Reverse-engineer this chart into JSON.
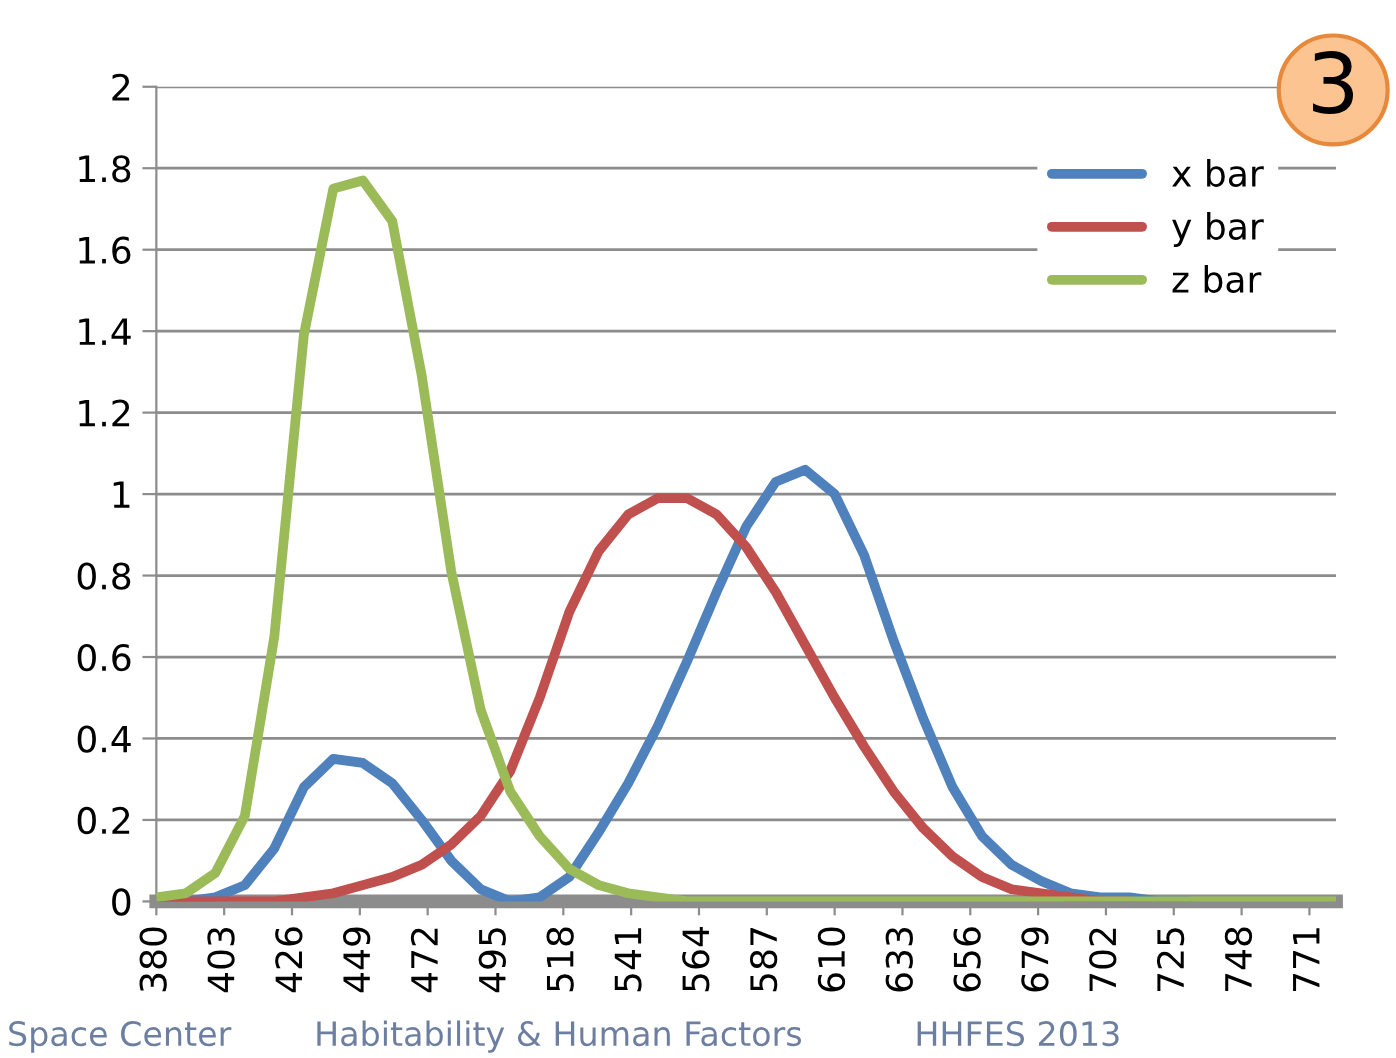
{
  "chart_data": {
    "type": "line",
    "x": [
      380,
      390,
      400,
      410,
      420,
      430,
      440,
      450,
      460,
      470,
      480,
      490,
      500,
      510,
      520,
      530,
      540,
      550,
      560,
      570,
      580,
      590,
      600,
      610,
      620,
      630,
      640,
      650,
      660,
      670,
      680,
      690,
      700,
      710,
      720,
      730,
      740,
      750,
      760,
      770,
      780
    ],
    "series": [
      {
        "name": "x bar",
        "color": "#4f81bd",
        "values": [
          0.0,
          0.0,
          0.01,
          0.04,
          0.13,
          0.28,
          0.35,
          0.34,
          0.29,
          0.2,
          0.1,
          0.03,
          0.0,
          0.01,
          0.06,
          0.17,
          0.29,
          0.43,
          0.59,
          0.76,
          0.92,
          1.03,
          1.06,
          1.0,
          0.85,
          0.64,
          0.45,
          0.28,
          0.16,
          0.09,
          0.05,
          0.02,
          0.01,
          0.01,
          0.0,
          0.0,
          null,
          null,
          null,
          null,
          null
        ]
      },
      {
        "name": "y bar",
        "color": "#c0504d",
        "values": [
          0.0,
          0.0,
          0.0,
          0.0,
          0.0,
          0.01,
          0.02,
          0.04,
          0.06,
          0.09,
          0.14,
          0.21,
          0.32,
          0.5,
          0.71,
          0.86,
          0.95,
          0.99,
          0.99,
          0.95,
          0.87,
          0.76,
          0.63,
          0.5,
          0.38,
          0.27,
          0.18,
          0.11,
          0.06,
          0.03,
          0.02,
          0.01,
          0.0,
          0.0,
          null,
          null,
          null,
          null,
          null,
          null,
          null
        ]
      },
      {
        "name": "z bar",
        "color": "#9bbb59",
        "values": [
          0.01,
          0.02,
          0.07,
          0.21,
          0.65,
          1.39,
          1.75,
          1.77,
          1.67,
          1.29,
          0.81,
          0.47,
          0.27,
          0.16,
          0.08,
          0.04,
          0.02,
          0.01,
          0.0,
          0.0,
          0.0,
          0.0,
          0.0,
          0.0,
          0.0,
          0.0,
          0.0,
          0.0,
          0.0,
          0.0,
          0.0,
          0.0,
          0.0,
          0.0,
          0.0,
          0.0,
          0.0,
          0.0,
          0.0,
          0.0,
          0.0
        ]
      }
    ],
    "xlim": [
      380,
      780
    ],
    "xticks": [
      380,
      403,
      426,
      449,
      472,
      495,
      518,
      541,
      564,
      587,
      610,
      633,
      656,
      679,
      702,
      725,
      748,
      771
    ],
    "ylim": [
      0,
      2
    ],
    "yticks": [
      0,
      0.2,
      0.4,
      0.6,
      0.8,
      1,
      1.2,
      1.4,
      1.6,
      1.8,
      2
    ],
    "grid": "y",
    "legend": "top right",
    "marker": "none",
    "line_style": "solid",
    "annotations": [
      "3",
      "Space Center",
      "Habitability & Human Factors",
      "HHFES 2013"
    ]
  }
}
